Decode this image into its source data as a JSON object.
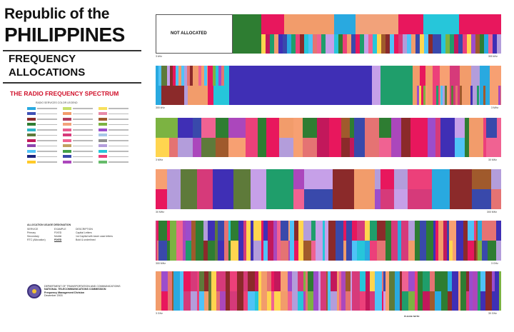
{
  "header": {
    "title_line1": "Republic of the",
    "title_line2": "PHILIPPINES",
    "subtitle_line1": "FREQUENCY",
    "subtitle_line2": "ALLOCATIONS",
    "spectrum_title": "THE RADIO FREQUENCY SPECTRUM"
  },
  "legend": {
    "title": "RADIO SERVICES COLOR LEGEND",
    "items": [
      {
        "color": "#29a9e0"
      },
      {
        "color": "#c6e06b"
      },
      {
        "color": "#f7e05c"
      },
      {
        "color": "#3f51b5"
      },
      {
        "color": "#f29c6b"
      },
      {
        "color": "#e88aa8"
      },
      {
        "color": "#8b2a2a"
      },
      {
        "color": "#b33b5e"
      },
      {
        "color": "#a05a2c"
      },
      {
        "color": "#2e7d32"
      },
      {
        "color": "#f2a27a"
      },
      {
        "color": "#7cb342"
      },
      {
        "color": "#2bb5c7"
      },
      {
        "color": "#e85d8f"
      },
      {
        "color": "#9c4dcc"
      },
      {
        "color": "#5e7a3a"
      },
      {
        "color": "#d63a7a"
      },
      {
        "color": "#a7c7e7"
      },
      {
        "color": "#c2185b"
      },
      {
        "color": "#f06292"
      },
      {
        "color": "#8e8e8e"
      },
      {
        "color": "#8e44ad"
      },
      {
        "color": "#c0a060"
      },
      {
        "color": "#b39ddb"
      },
      {
        "color": "#4fc3f7"
      },
      {
        "color": "#43a047"
      },
      {
        "color": "#26c6da"
      },
      {
        "color": "#1a237e"
      },
      {
        "color": "#3949ab"
      },
      {
        "color": "#ec407a"
      },
      {
        "color": "#ffca28"
      },
      {
        "color": "#ab47bc"
      },
      {
        "color": "#66bb6a"
      }
    ]
  },
  "designation": {
    "title": "ALLOCATION USAGE DESIGNATION",
    "headers": [
      "SERVICE",
      "EXAMPLE",
      "DESCRIPTION"
    ],
    "rows": [
      [
        "Primary",
        "FIXED",
        "Capital Letters"
      ],
      [
        "Secondary",
        "Mobile",
        "1st Capital with lower case letters"
      ],
      [
        "RTC (Allocation)",
        "FIXED",
        "Bold & underlined"
      ]
    ]
  },
  "agency": {
    "line1": "DEPARTMENT OF TRANSPORTATION AND COMMUNICATIONS",
    "line2": "NATIONAL TELECOMMUNICATIONS COMMISSION",
    "line3": "Frequency Management Division",
    "line4": "December 2003"
  },
  "bands": {
    "row1": {
      "start": "3 kHz",
      "end": "300 kHz",
      "na": "NOT ALLOCATED"
    },
    "row2": {
      "start": "300 kHz",
      "end": "3 MHz"
    },
    "row3": {
      "start": "3 MHz",
      "end": "30 MHz"
    },
    "row4": {
      "start": "30 MHz",
      "end": "300 MHz"
    },
    "row5": {
      "start": "300 MHz",
      "end": "3 GHz"
    },
    "row6": {
      "start": "3 GHz",
      "end": "30 GHz"
    }
  },
  "bottom": {
    "right_title": "PLEASE NOTE:"
  }
}
